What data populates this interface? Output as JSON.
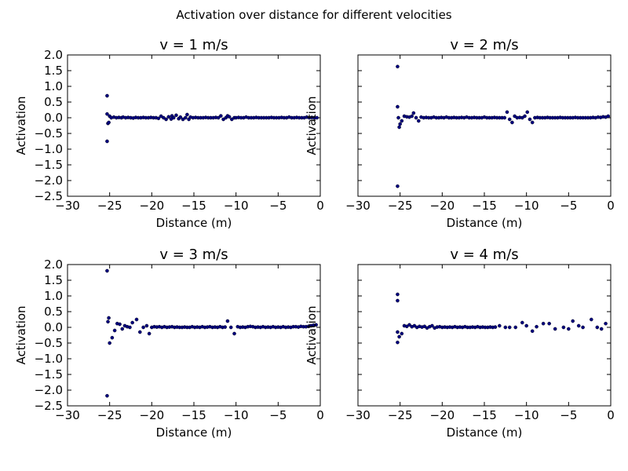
{
  "figure": {
    "suptitle": "Activation over distance for different velocities",
    "marker_color": "#000080",
    "sharey": true
  },
  "chart_data": [
    {
      "type": "scatter",
      "title": "v = 1 m/s",
      "xlabel": "Distance (m)",
      "ylabel": "Activation",
      "xlim": [
        -30,
        0
      ],
      "ylim": [
        -2.5,
        2.0
      ],
      "xticks": [
        -30,
        -25,
        -20,
        -15,
        -10,
        -5,
        0
      ],
      "yticks": [
        2.0,
        1.5,
        1.0,
        0.5,
        0.0,
        -0.5,
        -1.0,
        -1.5,
        -2.0,
        -2.5
      ],
      "x": [
        -25.3,
        -25.3,
        -25.3,
        -25.2,
        -25.1,
        -25.0,
        -24.8,
        -24.5,
        -24.2,
        -23.9,
        -23.6,
        -23.4,
        -23.1,
        -22.8,
        -22.5,
        -22.2,
        -21.9,
        -21.6,
        -21.3,
        -21.0,
        -20.7,
        -20.4,
        -20.1,
        -19.8,
        -19.5,
        -19.2,
        -18.9,
        -18.6,
        -18.3,
        -18.0,
        -17.7,
        -17.6,
        -17.4,
        -17.1,
        -16.8,
        -16.6,
        -16.3,
        -16.0,
        -15.8,
        -15.6,
        -15.4,
        -15.1,
        -14.8,
        -14.5,
        -14.2,
        -13.9,
        -13.6,
        -13.3,
        -13.0,
        -12.7,
        -12.4,
        -12.1,
        -11.8,
        -11.5,
        -11.2,
        -11.0,
        -10.8,
        -10.5,
        -10.2,
        -10.0,
        -9.7,
        -9.4,
        -9.1,
        -8.8,
        -8.5,
        -8.2,
        -7.9,
        -7.6,
        -7.3,
        -7.0,
        -6.7,
        -6.4,
        -6.1,
        -5.8,
        -5.5,
        -5.2,
        -4.9,
        -4.6,
        -4.3,
        -4.0,
        -3.7,
        -3.4,
        -3.1,
        -2.8,
        -2.5,
        -2.2,
        -1.9,
        -1.6,
        -1.3,
        -1.0,
        -0.7,
        -0.4
      ],
      "y": [
        0.7,
        -0.75,
        0.12,
        -0.18,
        -0.15,
        0.05,
        0.0,
        0.02,
        0.0,
        0.01,
        0.0,
        0.02,
        0.0,
        0.01,
        0.0,
        -0.01,
        0.01,
        0.0,
        0.0,
        0.01,
        0.0,
        0.0,
        0.01,
        0.0,
        0.0,
        -0.02,
        0.05,
        0.0,
        -0.05,
        0.03,
        -0.04,
        0.06,
        0.0,
        0.08,
        -0.03,
        0.02,
        -0.05,
        0.0,
        0.1,
        -0.05,
        0.02,
        0.0,
        0.01,
        0.0,
        0.0,
        0.0,
        0.01,
        0.0,
        0.0,
        0.0,
        0.01,
        0.0,
        0.06,
        -0.05,
        0.0,
        0.06,
        0.03,
        -0.05,
        0.0,
        0.0,
        0.01,
        0.0,
        0.0,
        0.02,
        0.0,
        0.0,
        0.0,
        0.01,
        0.0,
        0.0,
        0.0,
        0.0,
        0.0,
        0.01,
        0.0,
        0.0,
        0.0,
        0.01,
        0.0,
        0.0,
        0.02,
        0.0,
        0.0,
        0.01,
        0.0,
        0.0,
        0.0,
        0.02,
        0.0,
        0.01,
        0.0,
        0.0
      ]
    },
    {
      "type": "scatter",
      "title": "v = 2 m/s",
      "xlabel": "Distance (m)",
      "ylabel": "Activation",
      "xlim": [
        -30,
        0
      ],
      "ylim": [
        -2.5,
        2.0
      ],
      "xticks": [
        -30,
        -25,
        -20,
        -15,
        -10,
        -5,
        0
      ],
      "yticks": [],
      "x": [
        -25.3,
        -25.3,
        -25.3,
        -25.2,
        -25.1,
        -25.0,
        -24.8,
        -24.5,
        -24.2,
        -23.9,
        -23.6,
        -23.4,
        -23.1,
        -22.8,
        -22.5,
        -22.2,
        -21.9,
        -21.6,
        -21.3,
        -21.0,
        -20.7,
        -20.4,
        -20.1,
        -19.8,
        -19.5,
        -19.2,
        -18.9,
        -18.6,
        -18.3,
        -18.0,
        -17.7,
        -17.4,
        -17.1,
        -16.8,
        -16.5,
        -16.2,
        -15.9,
        -15.6,
        -15.3,
        -15.0,
        -14.7,
        -14.4,
        -14.1,
        -13.8,
        -13.5,
        -13.2,
        -12.9,
        -12.6,
        -12.3,
        -12.0,
        -11.7,
        -11.4,
        -11.1,
        -10.8,
        -10.5,
        -10.2,
        -9.9,
        -9.6,
        -9.3,
        -9.0,
        -8.7,
        -8.4,
        -8.1,
        -7.8,
        -7.5,
        -7.2,
        -6.9,
        -6.6,
        -6.3,
        -6.0,
        -5.7,
        -5.4,
        -5.1,
        -4.8,
        -4.5,
        -4.2,
        -3.9,
        -3.6,
        -3.3,
        -3.0,
        -2.7,
        -2.4,
        -2.1,
        -1.8,
        -1.5,
        -1.2,
        -0.9,
        -0.6,
        -0.3
      ],
      "y": [
        1.63,
        -2.18,
        0.35,
        0.0,
        -0.3,
        -0.2,
        -0.1,
        0.05,
        0.03,
        0.02,
        0.05,
        0.15,
        0.0,
        -0.1,
        0.02,
        0.0,
        0.01,
        0.0,
        0.0,
        0.02,
        0.0,
        0.0,
        0.01,
        0.0,
        0.02,
        0.0,
        0.0,
        0.01,
        0.0,
        0.0,
        0.01,
        0.0,
        0.02,
        0.0,
        0.0,
        0.01,
        0.0,
        0.0,
        0.0,
        0.02,
        0.0,
        0.0,
        0.0,
        0.01,
        0.0,
        0.0,
        0.0,
        0.0,
        0.18,
        -0.05,
        -0.15,
        0.05,
        0.0,
        0.01,
        0.0,
        0.05,
        0.18,
        -0.05,
        -0.15,
        0.0,
        0.01,
        0.0,
        0.0,
        0.0,
        0.01,
        0.0,
        0.0,
        0.0,
        0.0,
        0.01,
        0.0,
        0.0,
        0.0,
        0.0,
        0.0,
        0.01,
        0.0,
        0.0,
        0.0,
        0.0,
        0.0,
        0.0,
        0.01,
        0.0,
        0.02,
        0.01,
        0.03,
        0.02,
        0.05
      ]
    },
    {
      "type": "scatter",
      "title": "v = 3 m/s",
      "xlabel": "Distance (m)",
      "ylabel": "Activation",
      "xlim": [
        -30,
        0
      ],
      "ylim": [
        -2.5,
        2.0
      ],
      "xticks": [
        -30,
        -25,
        -20,
        -15,
        -10,
        -5,
        0
      ],
      "yticks": [
        2.0,
        1.5,
        1.0,
        0.5,
        0.0,
        -0.5,
        -1.0,
        -1.5,
        -2.0,
        -2.5
      ],
      "x": [
        -25.3,
        -25.3,
        -25.2,
        -25.1,
        -25.0,
        -24.7,
        -24.4,
        -24.1,
        -23.8,
        -23.5,
        -23.2,
        -22.9,
        -22.6,
        -22.3,
        -21.8,
        -21.4,
        -21.0,
        -20.6,
        -20.3,
        -20.0,
        -19.7,
        -19.4,
        -19.1,
        -18.8,
        -18.5,
        -18.2,
        -17.9,
        -17.6,
        -17.3,
        -17.0,
        -16.7,
        -16.4,
        -16.1,
        -15.8,
        -15.5,
        -15.2,
        -14.9,
        -14.6,
        -14.3,
        -14.0,
        -13.7,
        -13.4,
        -13.1,
        -12.8,
        -12.5,
        -12.2,
        -11.9,
        -11.6,
        -11.3,
        -11.0,
        -10.6,
        -10.2,
        -9.8,
        -9.5,
        -9.2,
        -8.9,
        -8.6,
        -8.3,
        -8.0,
        -7.7,
        -7.4,
        -7.1,
        -6.8,
        -6.5,
        -6.2,
        -5.9,
        -5.6,
        -5.3,
        -5.0,
        -4.7,
        -4.4,
        -4.1,
        -3.8,
        -3.5,
        -3.2,
        -2.9,
        -2.6,
        -2.3,
        -2.0,
        -1.7,
        -1.4,
        -1.1,
        -0.8,
        -0.5
      ],
      "y": [
        1.8,
        -2.18,
        0.18,
        0.3,
        -0.5,
        -0.33,
        -0.1,
        0.12,
        0.1,
        -0.05,
        0.05,
        0.02,
        0.0,
        0.15,
        0.25,
        -0.15,
        0.0,
        0.05,
        -0.2,
        0.0,
        0.02,
        0.01,
        0.02,
        0.0,
        0.02,
        0.0,
        0.01,
        0.02,
        0.0,
        0.01,
        0.0,
        0.0,
        0.01,
        0.0,
        0.0,
        0.02,
        0.0,
        0.01,
        0.0,
        0.02,
        0.0,
        0.01,
        0.02,
        0.0,
        0.01,
        0.0,
        0.02,
        0.0,
        0.01,
        0.2,
        0.0,
        -0.2,
        0.02,
        0.0,
        0.01,
        0.0,
        0.02,
        0.03,
        0.02,
        0.0,
        0.01,
        0.0,
        0.02,
        0.0,
        0.01,
        0.0,
        0.02,
        0.0,
        0.01,
        0.0,
        0.02,
        0.0,
        0.01,
        0.0,
        0.02,
        0.02,
        0.01,
        0.03,
        0.02,
        0.02,
        0.03,
        0.05,
        0.07,
        0.08
      ]
    },
    {
      "type": "scatter",
      "title": "v = 4 m/s",
      "xlabel": "Distance (m)",
      "ylabel": "Activation",
      "xlim": [
        -30,
        0
      ],
      "ylim": [
        -2.5,
        2.0
      ],
      "xticks": [
        -30,
        -25,
        -20,
        -15,
        -10,
        -5,
        0
      ],
      "yticks": [],
      "x": [
        -25.3,
        -25.3,
        -25.3,
        -25.3,
        -25.1,
        -24.8,
        -24.5,
        -24.2,
        -23.9,
        -23.6,
        -23.3,
        -23.0,
        -22.7,
        -22.4,
        -22.1,
        -21.8,
        -21.5,
        -21.2,
        -20.9,
        -20.6,
        -20.3,
        -20.0,
        -19.7,
        -19.4,
        -19.1,
        -18.8,
        -18.5,
        -18.2,
        -17.9,
        -17.6,
        -17.3,
        -17.0,
        -16.7,
        -16.4,
        -16.1,
        -15.8,
        -15.5,
        -15.2,
        -14.9,
        -14.6,
        -14.3,
        -14.0,
        -13.7,
        -13.2,
        -12.5,
        -12.0,
        -11.3,
        -10.5,
        -10.0,
        -9.3,
        -8.8,
        -8.0,
        -7.3,
        -6.6,
        -5.6,
        -5.0,
        -4.5,
        -3.8,
        -3.3,
        -2.3,
        -1.6,
        -1.1,
        -0.6
      ],
      "y": [
        1.05,
        0.85,
        -0.48,
        -0.15,
        -0.3,
        -0.2,
        0.05,
        0.03,
        0.08,
        0.02,
        0.05,
        0.0,
        0.03,
        0.01,
        0.03,
        -0.02,
        0.02,
        0.05,
        -0.02,
        0.01,
        0.02,
        0.0,
        0.01,
        0.0,
        0.01,
        0.0,
        0.02,
        0.0,
        0.01,
        0.0,
        0.02,
        0.0,
        0.0,
        0.01,
        0.0,
        0.02,
        0.0,
        0.01,
        0.0,
        0.0,
        0.01,
        0.0,
        0.01,
        0.05,
        0.0,
        0.0,
        0.0,
        0.15,
        0.05,
        -0.12,
        0.02,
        0.12,
        0.12,
        -0.05,
        0.0,
        -0.05,
        0.2,
        0.05,
        0.0,
        0.25,
        0.0,
        -0.05,
        0.12
      ]
    }
  ]
}
